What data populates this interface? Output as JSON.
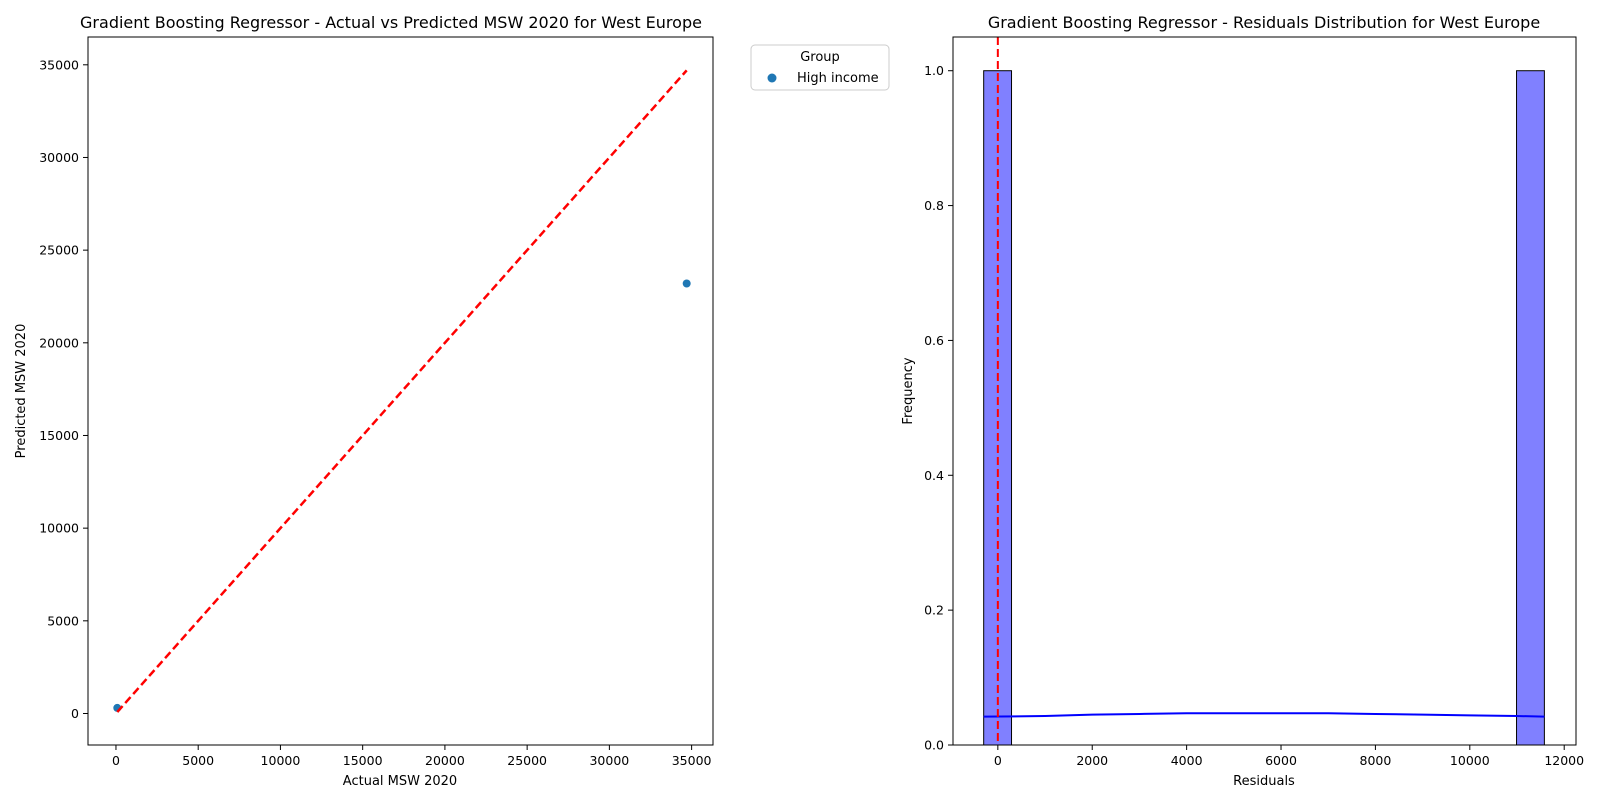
{
  "chart_data": [
    {
      "type": "scatter",
      "title": "Gradient Boosting Regressor - Actual vs Predicted MSW 2020 for West Europe",
      "xlabel": "Actual MSW 2020",
      "ylabel": "Predicted MSW 2020",
      "xlim": [
        -1700,
        36300
      ],
      "ylim": [
        -1700,
        36500
      ],
      "xticks": [
        0,
        5000,
        10000,
        15000,
        20000,
        25000,
        30000,
        35000
      ],
      "yticks": [
        0,
        5000,
        10000,
        15000,
        20000,
        25000,
        30000,
        35000
      ],
      "series": [
        {
          "name": "High income",
          "color": "#1f77b4",
          "x": [
            80,
            34700
          ],
          "y": [
            300,
            23200
          ]
        }
      ],
      "reference_line": {
        "x": [
          80,
          34700
        ],
        "y": [
          80,
          34700
        ],
        "color": "#ff0000",
        "style": "dashed"
      },
      "legend": {
        "title": "Group",
        "placement": "outside-top-right"
      },
      "grid": false
    },
    {
      "type": "bar",
      "title": "Gradient Boosting Regressor - Residuals Distribution for West Europe",
      "xlabel": "Residuals",
      "ylabel": "Frequency",
      "xlim": [
        -950,
        12250
      ],
      "ylim": [
        0,
        1.05
      ],
      "xticks": [
        0,
        2000,
        4000,
        6000,
        8000,
        10000,
        12000
      ],
      "yticks": [
        "0.0",
        "0.2",
        "0.4",
        "0.6",
        "0.8",
        "1.0"
      ],
      "bin_width": 590,
      "bars": [
        {
          "start": -300,
          "value": 1.0
        },
        {
          "start": 10990,
          "value": 1.0
        }
      ],
      "bar_color": "#8080ff",
      "kde": {
        "color": "#0000ff",
        "x": [
          -300,
          1000,
          2000,
          3000,
          4000,
          5000,
          5700,
          7000,
          8000,
          9000,
          10000,
          11000,
          11580
        ],
        "y": [
          0.042,
          0.043,
          0.045,
          0.046,
          0.047,
          0.047,
          0.047,
          0.047,
          0.046,
          0.045,
          0.044,
          0.043,
          0.042
        ]
      },
      "vertical_line": {
        "x": 0,
        "color": "#ff0000",
        "style": "dashed"
      },
      "grid": false
    }
  ]
}
